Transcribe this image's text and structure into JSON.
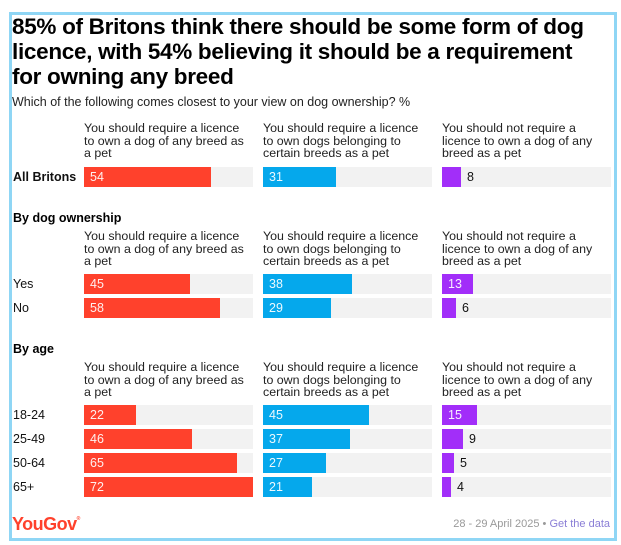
{
  "title": "85% of Britons think there should be some form of dog licence, with 54% believing it should be a requirement for owning any breed",
  "subtitle": "Which of the following comes closest to your view on dog ownership? %",
  "footer": {
    "brand": "YouGov",
    "date": "28 - 29 April 2025",
    "separator": "•",
    "link": "Get the data"
  },
  "colors": {
    "frame": "#8fd6f5",
    "track": "#f2f2f2",
    "series": [
      "#ff412c",
      "#05a8ec",
      "#a22ef9"
    ]
  },
  "chart_data": {
    "type": "bar",
    "orientation": "horizontal",
    "title": "85% of Britons think there should be some form of dog licence, with 54% believing it should be a requirement for owning any breed",
    "subtitle": "Which of the following comes closest to your view on dog ownership? %",
    "scale_max": 72,
    "series": [
      {
        "name": "You should require a licence to own a dog of any breed as a pet",
        "color": "#ff412c"
      },
      {
        "name": "You should require a licence to own dogs belonging to certain breeds as a pet",
        "color": "#05a8ec"
      },
      {
        "name": "You should not require a licence to own a dog of any breed as a pet",
        "color": "#a22ef9"
      }
    ],
    "sections": [
      {
        "title": "",
        "show_headers": true,
        "rows": [
          {
            "label": "All Britons",
            "bold": true,
            "values": [
              54,
              31,
              8
            ]
          }
        ]
      },
      {
        "title": "By dog ownership",
        "show_headers": true,
        "rows": [
          {
            "label": "Yes",
            "bold": false,
            "values": [
              45,
              38,
              13
            ]
          },
          {
            "label": "No",
            "bold": false,
            "values": [
              58,
              29,
              6
            ]
          }
        ]
      },
      {
        "title": "By age",
        "show_headers": true,
        "rows": [
          {
            "label": "18-24",
            "bold": false,
            "values": [
              22,
              45,
              15
            ]
          },
          {
            "label": "25-49",
            "bold": false,
            "values": [
              46,
              37,
              9
            ]
          },
          {
            "label": "50-64",
            "bold": false,
            "values": [
              65,
              27,
              5
            ]
          },
          {
            "label": "65+",
            "bold": false,
            "values": [
              72,
              21,
              4
            ]
          }
        ]
      }
    ]
  }
}
